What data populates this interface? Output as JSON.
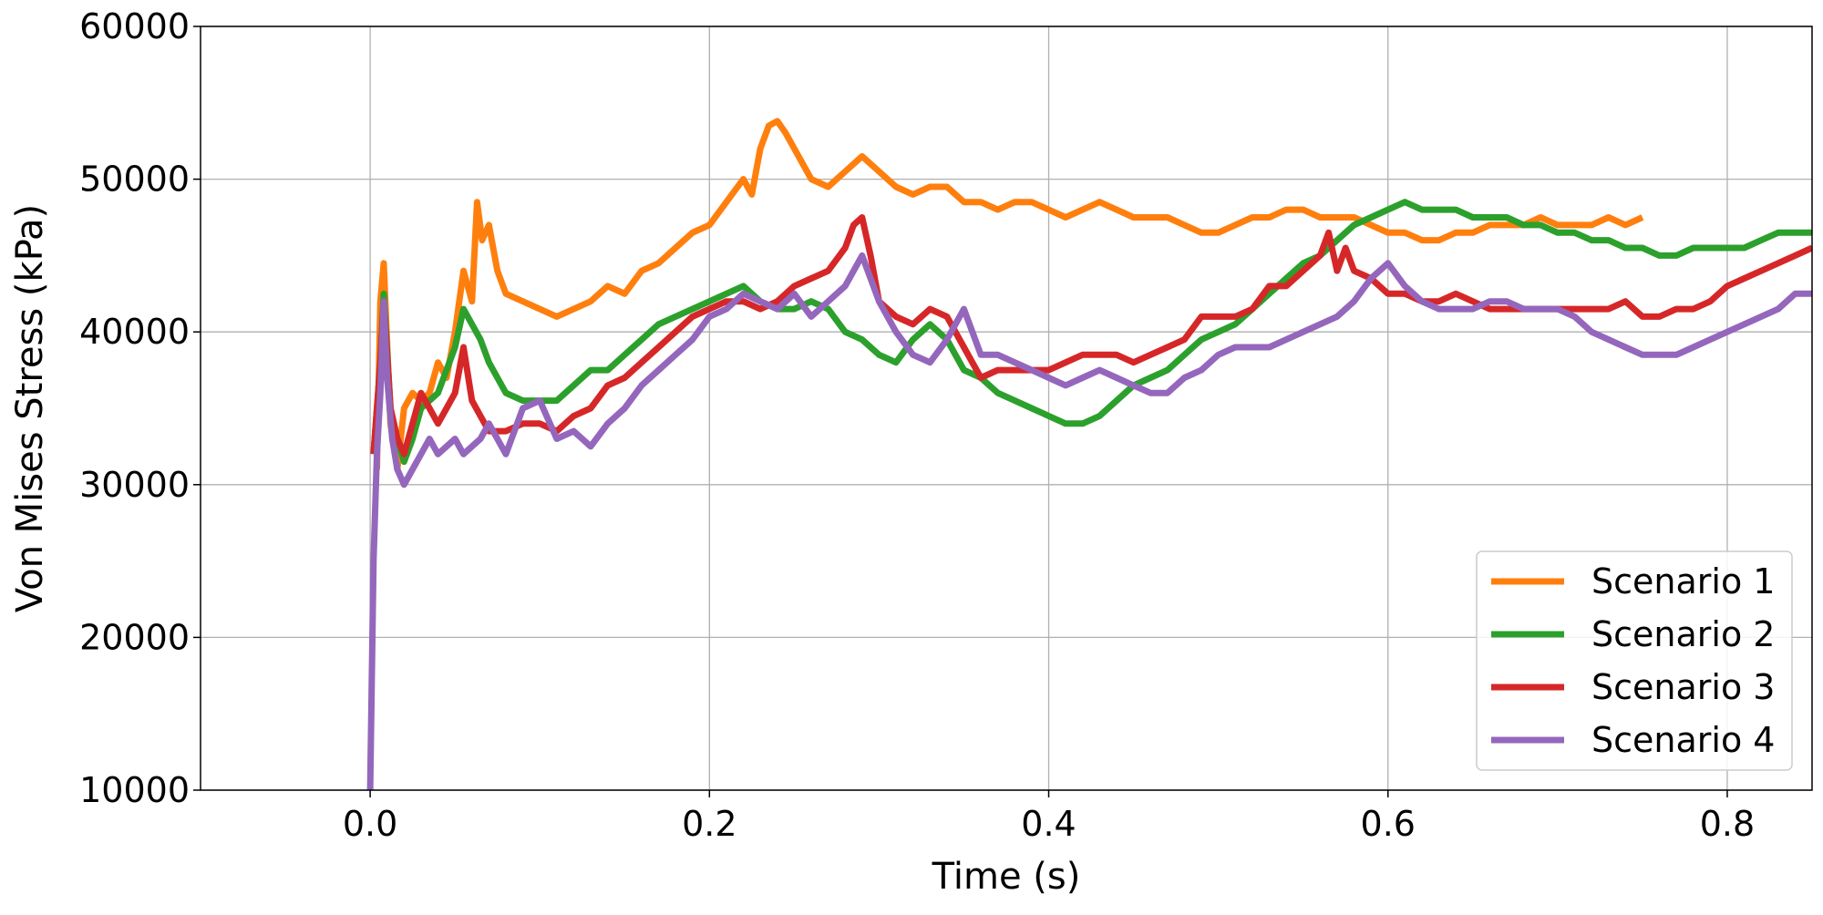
{
  "chart_data": {
    "type": "line",
    "title": "",
    "xlabel": "Time (s)",
    "ylabel": "Von Mises Stress (kPa)",
    "xlim": [
      -0.1,
      0.85
    ],
    "ylim": [
      10000,
      60000
    ],
    "x_ticks": [
      0.0,
      0.2,
      0.4,
      0.6,
      0.8
    ],
    "x_tick_labels": [
      "0.0",
      "0.2",
      "0.4",
      "0.6",
      "0.8"
    ],
    "y_ticks": [
      10000,
      20000,
      30000,
      40000,
      50000,
      60000
    ],
    "y_tick_labels": [
      "10000",
      "20000",
      "30000",
      "40000",
      "50000",
      "60000"
    ],
    "grid": true,
    "legend_position": "lower-right",
    "series": [
      {
        "name": "Scenario 1",
        "color": "#ff7f0e",
        "x": [
          0.004,
          0.006,
          0.008,
          0.012,
          0.016,
          0.02,
          0.025,
          0.03,
          0.035,
          0.04,
          0.045,
          0.05,
          0.055,
          0.06,
          0.063,
          0.066,
          0.07,
          0.075,
          0.08,
          0.09,
          0.1,
          0.11,
          0.12,
          0.13,
          0.14,
          0.15,
          0.16,
          0.17,
          0.18,
          0.19,
          0.2,
          0.21,
          0.22,
          0.225,
          0.23,
          0.235,
          0.24,
          0.245,
          0.25,
          0.26,
          0.27,
          0.28,
          0.29,
          0.3,
          0.31,
          0.32,
          0.33,
          0.34,
          0.35,
          0.36,
          0.37,
          0.38,
          0.39,
          0.4,
          0.41,
          0.42,
          0.43,
          0.44,
          0.45,
          0.46,
          0.47,
          0.48,
          0.49,
          0.5,
          0.51,
          0.52,
          0.53,
          0.54,
          0.55,
          0.56,
          0.57,
          0.58,
          0.59,
          0.6,
          0.61,
          0.62,
          0.63,
          0.64,
          0.65,
          0.66,
          0.67,
          0.68,
          0.69,
          0.7,
          0.71,
          0.72,
          0.73,
          0.74,
          0.75
        ],
        "values": [
          31000,
          42000,
          44500,
          34000,
          31000,
          35000,
          36000,
          35500,
          36000,
          38000,
          37000,
          40000,
          44000,
          42000,
          48500,
          46000,
          47000,
          44000,
          42500,
          42000,
          41500,
          41000,
          41500,
          42000,
          43000,
          42500,
          44000,
          44500,
          45500,
          46500,
          47000,
          48500,
          50000,
          49000,
          52000,
          53500,
          53800,
          53000,
          52000,
          50000,
          49500,
          50500,
          51500,
          50500,
          49500,
          49000,
          49500,
          49500,
          48500,
          48500,
          48000,
          48500,
          48500,
          48000,
          47500,
          48000,
          48500,
          48000,
          47500,
          47500,
          47500,
          47000,
          46500,
          46500,
          47000,
          47500,
          47500,
          48000,
          48000,
          47500,
          47500,
          47500,
          47000,
          46500,
          46500,
          46000,
          46000,
          46500,
          46500,
          47000,
          47000,
          47000,
          47500,
          47000,
          47000,
          47000,
          47500,
          47000,
          47500
        ]
      },
      {
        "name": "Scenario 2",
        "color": "#2ca02c",
        "x": [
          0.002,
          0.006,
          0.008,
          0.012,
          0.016,
          0.02,
          0.025,
          0.03,
          0.04,
          0.05,
          0.055,
          0.06,
          0.065,
          0.07,
          0.08,
          0.09,
          0.1,
          0.11,
          0.12,
          0.13,
          0.14,
          0.15,
          0.16,
          0.17,
          0.18,
          0.19,
          0.2,
          0.21,
          0.22,
          0.23,
          0.24,
          0.25,
          0.26,
          0.27,
          0.28,
          0.29,
          0.3,
          0.31,
          0.32,
          0.33,
          0.34,
          0.35,
          0.36,
          0.37,
          0.38,
          0.39,
          0.4,
          0.41,
          0.42,
          0.43,
          0.44,
          0.45,
          0.46,
          0.47,
          0.48,
          0.49,
          0.5,
          0.51,
          0.52,
          0.53,
          0.54,
          0.55,
          0.56,
          0.57,
          0.58,
          0.59,
          0.6,
          0.61,
          0.62,
          0.63,
          0.64,
          0.65,
          0.66,
          0.67,
          0.68,
          0.69,
          0.7,
          0.71,
          0.72,
          0.73,
          0.74,
          0.75,
          0.76,
          0.77,
          0.78,
          0.79,
          0.8,
          0.81,
          0.82,
          0.83,
          0.84,
          0.85
        ],
        "values": [
          32000,
          38000,
          42500,
          35000,
          33000,
          31500,
          33000,
          35000,
          36000,
          39000,
          41500,
          40500,
          39500,
          38000,
          36000,
          35500,
          35500,
          35500,
          36500,
          37500,
          37500,
          38500,
          39500,
          40500,
          41000,
          41500,
          42000,
          42500,
          43000,
          42000,
          41500,
          41500,
          42000,
          41500,
          40000,
          39500,
          38500,
          38000,
          39500,
          40500,
          39500,
          37500,
          37000,
          36000,
          35500,
          35000,
          34500,
          34000,
          34000,
          34500,
          35500,
          36500,
          37000,
          37500,
          38500,
          39500,
          40000,
          40500,
          41500,
          42500,
          43500,
          44500,
          45000,
          46000,
          47000,
          47500,
          48000,
          48500,
          48000,
          48000,
          48000,
          47500,
          47500,
          47500,
          47000,
          47000,
          46500,
          46500,
          46000,
          46000,
          45500,
          45500,
          45000,
          45000,
          45500,
          45500,
          45500,
          45500,
          46000,
          46500,
          46500,
          46500
        ]
      },
      {
        "name": "Scenario 3",
        "color": "#d62728",
        "x": [
          0.002,
          0.006,
          0.008,
          0.012,
          0.016,
          0.02,
          0.025,
          0.03,
          0.035,
          0.04,
          0.045,
          0.05,
          0.055,
          0.06,
          0.065,
          0.07,
          0.08,
          0.09,
          0.1,
          0.11,
          0.12,
          0.13,
          0.14,
          0.15,
          0.16,
          0.17,
          0.18,
          0.19,
          0.2,
          0.21,
          0.22,
          0.23,
          0.24,
          0.25,
          0.26,
          0.27,
          0.28,
          0.285,
          0.29,
          0.295,
          0.3,
          0.31,
          0.32,
          0.33,
          0.34,
          0.35,
          0.36,
          0.37,
          0.38,
          0.39,
          0.4,
          0.41,
          0.42,
          0.43,
          0.44,
          0.45,
          0.46,
          0.47,
          0.48,
          0.49,
          0.5,
          0.51,
          0.52,
          0.53,
          0.54,
          0.55,
          0.56,
          0.565,
          0.57,
          0.575,
          0.58,
          0.59,
          0.6,
          0.61,
          0.62,
          0.63,
          0.64,
          0.65,
          0.66,
          0.67,
          0.68,
          0.69,
          0.7,
          0.71,
          0.72,
          0.73,
          0.74,
          0.75,
          0.76,
          0.77,
          0.78,
          0.79,
          0.8,
          0.81,
          0.82,
          0.83,
          0.84,
          0.85
        ],
        "values": [
          32000,
          38000,
          42000,
          35000,
          33000,
          32000,
          34000,
          36000,
          35000,
          34000,
          35000,
          36000,
          39000,
          35500,
          34500,
          33500,
          33500,
          34000,
          34000,
          33500,
          34500,
          35000,
          36500,
          37000,
          38000,
          39000,
          40000,
          41000,
          41500,
          42000,
          42000,
          41500,
          42000,
          43000,
          43500,
          44000,
          45500,
          47000,
          47500,
          45000,
          42000,
          41000,
          40500,
          41500,
          41000,
          39000,
          37000,
          37500,
          37500,
          37500,
          37500,
          38000,
          38500,
          38500,
          38500,
          38000,
          38500,
          39000,
          39500,
          41000,
          41000,
          41000,
          41500,
          43000,
          43000,
          44000,
          45000,
          46500,
          44000,
          45500,
          44000,
          43500,
          42500,
          42500,
          42000,
          42000,
          42500,
          42000,
          41500,
          41500,
          41500,
          41500,
          41500,
          41500,
          41500,
          41500,
          42000,
          41000,
          41000,
          41500,
          41500,
          42000,
          43000,
          43500,
          44000,
          44500,
          45000,
          45500
        ]
      },
      {
        "name": "Scenario 4",
        "color": "#9467bd",
        "x": [
          0.0,
          0.002,
          0.004,
          0.006,
          0.008,
          0.01,
          0.013,
          0.016,
          0.02,
          0.025,
          0.03,
          0.035,
          0.04,
          0.045,
          0.05,
          0.055,
          0.06,
          0.065,
          0.07,
          0.08,
          0.09,
          0.1,
          0.11,
          0.12,
          0.13,
          0.14,
          0.15,
          0.16,
          0.17,
          0.18,
          0.19,
          0.2,
          0.21,
          0.22,
          0.23,
          0.24,
          0.25,
          0.26,
          0.27,
          0.28,
          0.285,
          0.29,
          0.3,
          0.31,
          0.32,
          0.33,
          0.34,
          0.35,
          0.36,
          0.37,
          0.38,
          0.39,
          0.4,
          0.41,
          0.42,
          0.43,
          0.44,
          0.45,
          0.46,
          0.47,
          0.48,
          0.49,
          0.5,
          0.51,
          0.52,
          0.53,
          0.54,
          0.55,
          0.56,
          0.57,
          0.58,
          0.59,
          0.6,
          0.61,
          0.62,
          0.63,
          0.64,
          0.65,
          0.66,
          0.67,
          0.68,
          0.69,
          0.7,
          0.71,
          0.72,
          0.73,
          0.74,
          0.75,
          0.76,
          0.77,
          0.78,
          0.79,
          0.8,
          0.81,
          0.82,
          0.83,
          0.84,
          0.85
        ],
        "values": [
          10000,
          25000,
          32000,
          36000,
          42000,
          37000,
          33000,
          31000,
          30000,
          31000,
          32000,
          33000,
          32000,
          32500,
          33000,
          32000,
          32500,
          33000,
          34000,
          32000,
          35000,
          35500,
          33000,
          33500,
          32500,
          34000,
          35000,
          36500,
          37500,
          38500,
          39500,
          41000,
          41500,
          42500,
          42000,
          41500,
          42500,
          41000,
          42000,
          43000,
          44000,
          45000,
          42000,
          40000,
          38500,
          38000,
          39500,
          41500,
          38500,
          38500,
          38000,
          37500,
          37000,
          36500,
          37000,
          37500,
          37000,
          36500,
          36000,
          36000,
          37000,
          37500,
          38500,
          39000,
          39000,
          39000,
          39500,
          40000,
          40500,
          41000,
          42000,
          43500,
          44500,
          43000,
          42000,
          41500,
          41500,
          41500,
          42000,
          42000,
          41500,
          41500,
          41500,
          41000,
          40000,
          39500,
          39000,
          38500,
          38500,
          38500,
          39000,
          39500,
          40000,
          40500,
          41000,
          41500,
          42500,
          42500
        ]
      }
    ]
  }
}
